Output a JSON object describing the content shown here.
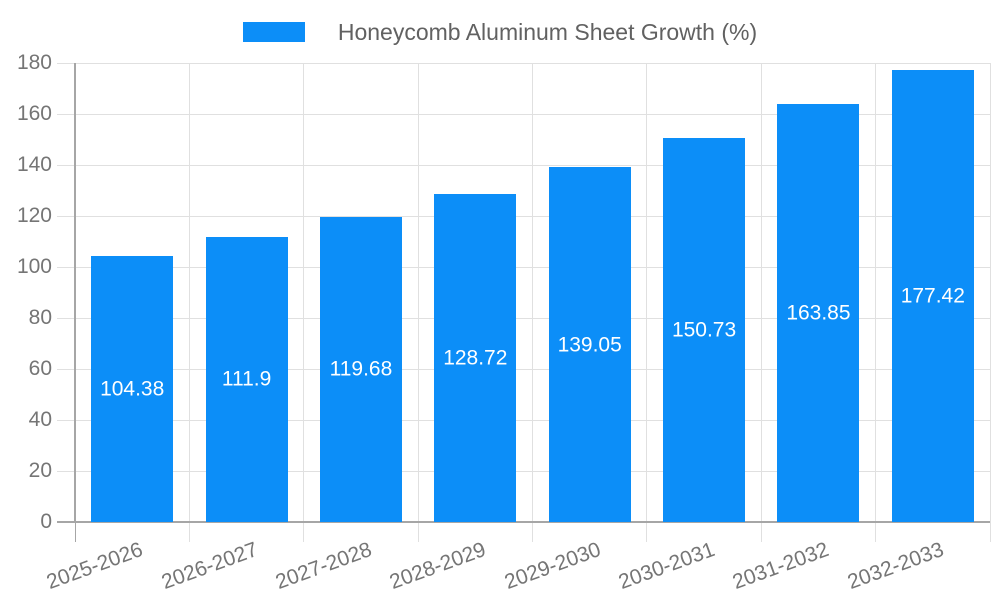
{
  "chart_data": {
    "type": "bar",
    "title": "",
    "legend": {
      "label": "Honeycomb Aluminum Sheet Growth (%)",
      "position": "top-center"
    },
    "categories": [
      "2025-2026",
      "2026-2027",
      "2027-2028",
      "2028-2029",
      "2029-2030",
      "2030-2031",
      "2031-2032",
      "2032-2033"
    ],
    "series": [
      {
        "name": "Honeycomb Aluminum Sheet Growth (%)",
        "values": [
          104.38,
          111.9,
          119.68,
          128.72,
          139.05,
          150.73,
          163.85,
          177.42
        ]
      }
    ],
    "value_labels": [
      "104.38",
      "111.9",
      "119.68",
      "128.72",
      "139.05",
      "150.73",
      "163.85",
      "177.42"
    ],
    "xlabel": "",
    "ylabel": "",
    "ylim": [
      0,
      180
    ],
    "ytick_step": 20,
    "yticks": [
      0,
      20,
      40,
      60,
      80,
      100,
      120,
      140,
      160,
      180
    ],
    "grid": true,
    "x_label_rotation_deg": -20,
    "colors": {
      "bar": "#0c8ef8",
      "value_label": "#ffffff",
      "axis_tick_label": "#757575",
      "legend_text": "#616161",
      "gridline": "#e0e0e0",
      "axis_line": "#a6a6a6",
      "background": "#ffffff"
    }
  }
}
